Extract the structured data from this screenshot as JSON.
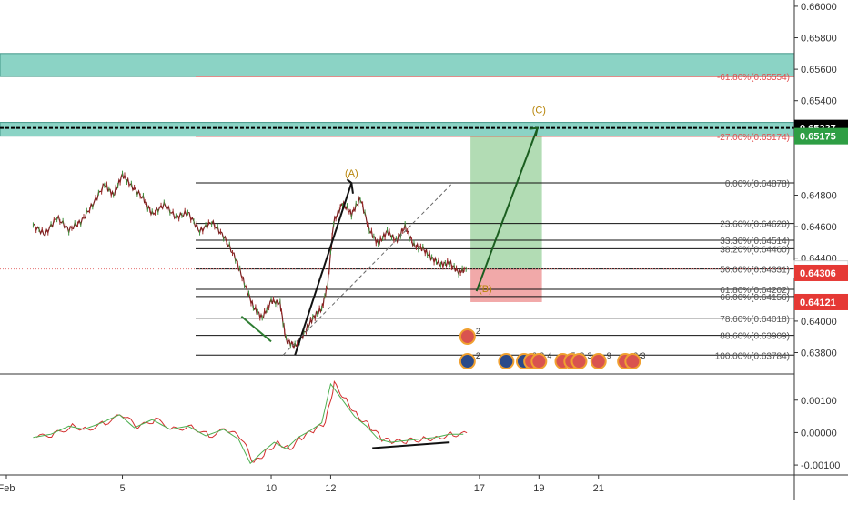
{
  "chart_data": {
    "type": "line",
    "symbol_note": "",
    "price_panel": {
      "ylim": [
        0.6367,
        0.6604
      ],
      "yticks": [
        "0.66000",
        "0.65800",
        "0.65600",
        "0.65400",
        "0.64800",
        "0.64600",
        "0.64400",
        "0.64000",
        "0.63800"
      ],
      "ytick_values": [
        0.66,
        0.658,
        0.656,
        0.654,
        0.648,
        0.646,
        0.644,
        0.64,
        0.638
      ],
      "grid": false,
      "price_tags": [
        {
          "label": "0.65227",
          "value": 0.65227,
          "bg": "#000000",
          "fg": "#ffffff"
        },
        {
          "label": "0.65175",
          "value": 0.65175,
          "bg": "#2e9e44",
          "fg": "#ffffff"
        },
        {
          "label": "0.64331",
          "value": 0.64331,
          "bg": "#ffffff",
          "fg": "#131722"
        },
        {
          "label": "0.64306",
          "value": 0.64306,
          "bg": "#e53935",
          "fg": "#ffffff"
        },
        {
          "label": "0.64121",
          "value": 0.64121,
          "bg": "#e53935",
          "fg": "#ffffff"
        }
      ],
      "fib_levels": [
        {
          "label": "0.00%(0.64878)",
          "value": 0.64878
        },
        {
          "label": "23.60%(0.64620)",
          "value": 0.6462
        },
        {
          "label": "33.30%(0.64514)",
          "value": 0.64514
        },
        {
          "label": "38.20%(0.64460)",
          "value": 0.6446
        },
        {
          "label": "50.00%(0.64331)",
          "value": 0.64331
        },
        {
          "label": "61.80%(0.64202)",
          "value": 0.64202
        },
        {
          "label": "66.00%(0.64156)",
          "value": 0.64156
        },
        {
          "label": "78.60%(0.64018)",
          "value": 0.64018
        },
        {
          "label": "88.60%(0.63909)",
          "value": 0.63909
        },
        {
          "label": "100.00%(0.63784)",
          "value": 0.63784
        }
      ],
      "fib_extensions": [
        {
          "label": "-61.80%(0.65554)",
          "value": 0.65554
        },
        {
          "label": "-27.00%(0.65174)",
          "value": 0.65174
        }
      ],
      "zones": [
        {
          "from": 0.65554,
          "to": 0.657,
          "color": "#7fcfbf"
        },
        {
          "from": 0.65175,
          "to": 0.65262,
          "color": "#7fcfbf"
        }
      ],
      "dotted_level": 0.65227,
      "wave_labels": [
        {
          "label": "(A)",
          "date": 12.7,
          "value": 0.6492
        },
        {
          "label": "(B)",
          "date": 17.2,
          "value": 0.64185
        },
        {
          "label": "(C)",
          "date": 19.0,
          "value": 0.6532
        }
      ],
      "position": {
        "date_from": 16.7,
        "date_to": 19.1,
        "entry": 0.64331,
        "target": 0.65175,
        "stop": 0.64121,
        "profit_color": "#a5d6a7",
        "loss_color": "#ef9a9a"
      },
      "projection": {
        "from_date": 16.9,
        "from": 0.6419,
        "to_date": 18.95,
        "to": 0.65227
      },
      "series": [
        {
          "date": 2.0,
          "value": 0.6461
        },
        {
          "date": 2.4,
          "value": 0.6455
        },
        {
          "date": 2.8,
          "value": 0.6466
        },
        {
          "date": 3.2,
          "value": 0.6458
        },
        {
          "date": 3.6,
          "value": 0.6463
        },
        {
          "date": 4.0,
          "value": 0.6474
        },
        {
          "date": 4.4,
          "value": 0.6487
        },
        {
          "date": 4.7,
          "value": 0.648
        },
        {
          "date": 5.0,
          "value": 0.6493
        },
        {
          "date": 5.3,
          "value": 0.6486
        },
        {
          "date": 5.7,
          "value": 0.6478
        },
        {
          "date": 6.0,
          "value": 0.6468
        },
        {
          "date": 6.4,
          "value": 0.6474
        },
        {
          "date": 6.8,
          "value": 0.6466
        },
        {
          "date": 7.2,
          "value": 0.6469
        },
        {
          "date": 7.6,
          "value": 0.6457
        },
        {
          "date": 8.0,
          "value": 0.6463
        },
        {
          "date": 8.4,
          "value": 0.6454
        },
        {
          "date": 8.8,
          "value": 0.644
        },
        {
          "date": 9.1,
          "value": 0.6424
        },
        {
          "date": 9.4,
          "value": 0.6409
        },
        {
          "date": 9.7,
          "value": 0.6402
        },
        {
          "date": 10.0,
          "value": 0.6413
        },
        {
          "date": 10.3,
          "value": 0.6411
        },
        {
          "date": 10.5,
          "value": 0.6388
        },
        {
          "date": 10.8,
          "value": 0.6384
        },
        {
          "date": 11.1,
          "value": 0.6392
        },
        {
          "date": 11.4,
          "value": 0.6402
        },
        {
          "date": 11.7,
          "value": 0.6408
        },
        {
          "date": 11.9,
          "value": 0.6423
        },
        {
          "date": 12.1,
          "value": 0.6463
        },
        {
          "date": 12.4,
          "value": 0.6475
        },
        {
          "date": 12.7,
          "value": 0.6468
        },
        {
          "date": 13.0,
          "value": 0.6478
        },
        {
          "date": 13.3,
          "value": 0.6458
        },
        {
          "date": 13.6,
          "value": 0.6449
        },
        {
          "date": 13.9,
          "value": 0.6457
        },
        {
          "date": 14.2,
          "value": 0.6451
        },
        {
          "date": 14.5,
          "value": 0.646
        },
        {
          "date": 14.8,
          "value": 0.6448
        },
        {
          "date": 15.1,
          "value": 0.6446
        },
        {
          "date": 15.4,
          "value": 0.644
        },
        {
          "date": 15.7,
          "value": 0.6436
        },
        {
          "date": 16.0,
          "value": 0.6437
        },
        {
          "date": 16.3,
          "value": 0.6431
        },
        {
          "date": 16.55,
          "value": 0.6433
        }
      ]
    },
    "oscillator_panel": {
      "ylim": [
        -0.00125,
        0.00175
      ],
      "yticks": [
        "0.00100",
        "0.00000",
        "-0.00100"
      ],
      "ytick_values": [
        0.001,
        0.0,
        -0.001
      ],
      "series": [
        {
          "date": 2.0,
          "value": -0.00015
        },
        {
          "date": 2.6,
          "value": -5e-05
        },
        {
          "date": 3.2,
          "value": 0.0002
        },
        {
          "date": 3.7,
          "value": 0.0001
        },
        {
          "date": 4.3,
          "value": 0.0003
        },
        {
          "date": 4.9,
          "value": 0.00055
        },
        {
          "date": 5.4,
          "value": 0.00015
        },
        {
          "date": 6.0,
          "value": 0.0004
        },
        {
          "date": 6.6,
          "value": 0.0001
        },
        {
          "date": 7.2,
          "value": 0.0002
        },
        {
          "date": 7.8,
          "value": -0.0001
        },
        {
          "date": 8.4,
          "value": 0.0001
        },
        {
          "date": 8.9,
          "value": -0.0002
        },
        {
          "date": 9.3,
          "value": -0.00095
        },
        {
          "date": 9.7,
          "value": -0.0006
        },
        {
          "date": 10.1,
          "value": -0.0003
        },
        {
          "date": 10.5,
          "value": -0.0005
        },
        {
          "date": 10.9,
          "value": -0.00015
        },
        {
          "date": 11.3,
          "value": 5e-05
        },
        {
          "date": 11.7,
          "value": 0.0003
        },
        {
          "date": 12.0,
          "value": 0.0015
        },
        {
          "date": 12.4,
          "value": 0.001
        },
        {
          "date": 12.8,
          "value": 0.0005
        },
        {
          "date": 13.2,
          "value": 0.0002
        },
        {
          "date": 13.6,
          "value": -0.0002
        },
        {
          "date": 14.0,
          "value": -0.0003
        },
        {
          "date": 14.5,
          "value": -0.00025
        },
        {
          "date": 15.0,
          "value": -0.0002
        },
        {
          "date": 15.5,
          "value": -0.00015
        },
        {
          "date": 16.0,
          "value": -5e-05
        },
        {
          "date": 16.55,
          "value": -5e-05
        }
      ],
      "divergence": {
        "from_date": 13.4,
        "from": -0.00048,
        "to_date": 16.0,
        "to": -0.0003
      }
    },
    "xaxis": {
      "ticks": [
        {
          "label": "Feb",
          "date": 1.1
        },
        {
          "label": "5",
          "date": 5.0
        },
        {
          "label": "10",
          "date": 10.0
        },
        {
          "label": "12",
          "date": 12.0
        },
        {
          "label": "17",
          "date": 17.0
        },
        {
          "label": "19",
          "date": 19.0
        },
        {
          "label": "21",
          "date": 21.0
        }
      ]
    },
    "event_badges": [
      {
        "date": 16.6,
        "row": 1,
        "count": "2",
        "kind": "us"
      },
      {
        "date": 16.6,
        "row": 2,
        "count": "2",
        "kind": "nz"
      },
      {
        "date": 17.9,
        "row": 2,
        "count": "",
        "kind": "nz"
      },
      {
        "date": 18.5,
        "row": 2,
        "count": "2",
        "kind": "nz"
      },
      {
        "date": 18.75,
        "row": 2,
        "count": "3",
        "kind": "us"
      },
      {
        "date": 19.0,
        "row": 2,
        "count": "4",
        "kind": "us"
      },
      {
        "date": 19.8,
        "row": 2,
        "count": "5",
        "kind": "us"
      },
      {
        "date": 20.1,
        "row": 2,
        "count": "2",
        "kind": "us"
      },
      {
        "date": 20.35,
        "row": 2,
        "count": "3",
        "kind": "us"
      },
      {
        "date": 21.0,
        "row": 2,
        "count": "9",
        "kind": "us"
      },
      {
        "date": 21.9,
        "row": 2,
        "count": "24",
        "kind": "us"
      },
      {
        "date": 22.15,
        "row": 2,
        "count": "3",
        "kind": "us"
      }
    ]
  }
}
